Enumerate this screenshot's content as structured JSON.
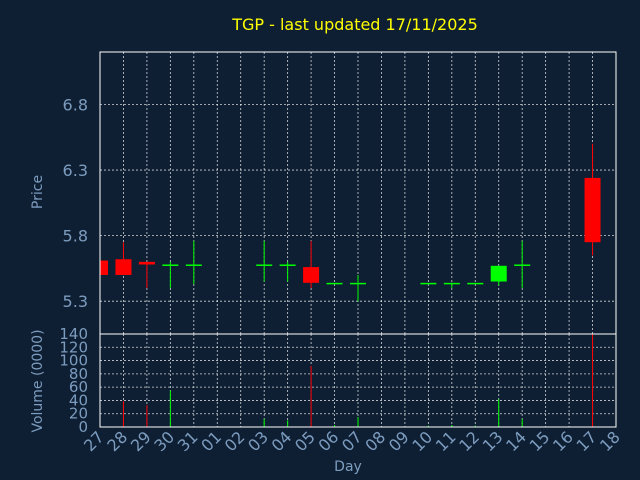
{
  "chart_data": {
    "type": "candlestick",
    "title": "TGP - last updated 17/11/2025",
    "xlabel": "Day",
    "price_panel": {
      "ylabel": "Price",
      "ylim": [
        5.05,
        7.2
      ],
      "yticks": [
        "5.3",
        "5.8",
        "6.3",
        "6.8"
      ],
      "ytick_values": [
        5.3,
        5.8,
        6.3,
        6.8
      ]
    },
    "volume_panel": {
      "ylabel": "Volume (0000)",
      "ylim": [
        0,
        140
      ],
      "yticks": [
        "0",
        "20",
        "40",
        "60",
        "80",
        "100",
        "120",
        "140"
      ],
      "ytick_values": [
        0,
        20,
        40,
        60,
        80,
        100,
        120,
        140
      ]
    },
    "x_labels": [
      "27",
      "28",
      "29",
      "30",
      "31",
      "01",
      "02",
      "03",
      "04",
      "05",
      "06",
      "07",
      "08",
      "09",
      "10",
      "11",
      "12",
      "13",
      "14",
      "15",
      "16",
      "17",
      "18"
    ],
    "candles": [
      {
        "x": "27",
        "open": 5.61,
        "close": 5.5,
        "high": 5.61,
        "low": 5.5,
        "volume": 0
      },
      {
        "x": "28",
        "open": 5.62,
        "close": 5.5,
        "high": 5.75,
        "low": 5.5,
        "volume": 39
      },
      {
        "x": "29",
        "open": 5.6,
        "close": 5.58,
        "high": 5.6,
        "low": 5.4,
        "volume": 33
      },
      {
        "x": "30",
        "open": 5.58,
        "close": 5.58,
        "high": 5.6,
        "low": 5.4,
        "volume": 55
      },
      {
        "x": "31",
        "open": 5.58,
        "close": 5.58,
        "high": 5.76,
        "low": 5.43,
        "volume": 0
      },
      {
        "x": "03",
        "open": 5.58,
        "close": 5.58,
        "high": 5.76,
        "low": 5.45,
        "volume": 12
      },
      {
        "x": "04",
        "open": 5.58,
        "close": 5.58,
        "high": 5.6,
        "low": 5.45,
        "volume": 10
      },
      {
        "x": "05",
        "open": 5.56,
        "close": 5.44,
        "high": 5.76,
        "low": 5.4,
        "volume": 92
      },
      {
        "x": "06",
        "open": 5.44,
        "close": 5.44,
        "high": 5.44,
        "low": 5.44,
        "volume": 3
      },
      {
        "x": "07",
        "open": 5.44,
        "close": 5.44,
        "high": 5.5,
        "low": 5.3,
        "volume": 15
      },
      {
        "x": "10",
        "open": 5.44,
        "close": 5.44,
        "high": 5.44,
        "low": 5.44,
        "volume": 2
      },
      {
        "x": "11",
        "open": 5.44,
        "close": 5.44,
        "high": 5.44,
        "low": 5.4,
        "volume": 3
      },
      {
        "x": "12",
        "open": 5.44,
        "close": 5.44,
        "high": 5.44,
        "low": 5.44,
        "volume": 2
      },
      {
        "x": "13",
        "open": 5.45,
        "close": 5.57,
        "high": 5.57,
        "low": 5.42,
        "volume": 42
      },
      {
        "x": "14",
        "open": 5.58,
        "close": 5.58,
        "high": 5.76,
        "low": 5.4,
        "volume": 12
      },
      {
        "x": "17",
        "open": 6.24,
        "close": 5.75,
        "high": 6.5,
        "low": 5.65,
        "volume": 140
      }
    ],
    "colors": {
      "up": "#00ff00",
      "down": "#ff0000",
      "grid": "#ffffff",
      "axis_text": "#7c9cbf",
      "title": "#ffff00",
      "background": "#0f1f33"
    },
    "grid": true
  }
}
